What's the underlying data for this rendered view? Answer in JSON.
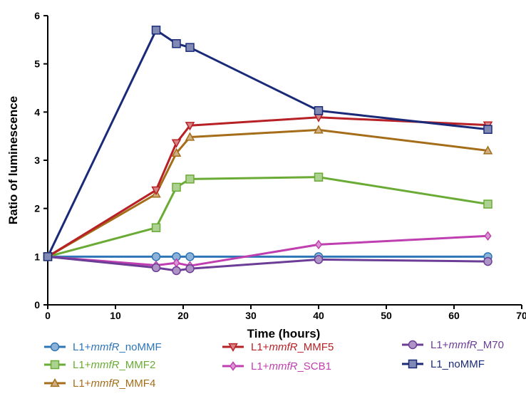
{
  "chart_data": {
    "type": "line",
    "title": "",
    "xlabel": "Time (hours)",
    "ylabel": "Ratio of luminescence",
    "xlim": [
      0,
      70
    ],
    "ylim": [
      0,
      6
    ],
    "xticks": [
      "0",
      "10",
      "20",
      "30",
      "40",
      "50",
      "60",
      "70"
    ],
    "yticks": [
      "0",
      "1",
      "2",
      "3",
      "4",
      "5",
      "6"
    ],
    "grid": false,
    "legend_position": "bottom",
    "series": [
      {
        "name": "L1+mmfR_noMMF",
        "prefix": "L1+",
        "italic": "mmfR",
        "suffix": "_noMMF",
        "color": "#2e75b6",
        "marker": "circle",
        "points": [
          [
            0,
            1.0
          ],
          [
            16,
            1.0
          ],
          [
            19,
            1.0
          ],
          [
            21,
            1.0
          ],
          [
            40,
            1.0
          ],
          [
            65,
            1.0
          ]
        ]
      },
      {
        "name": "L1+mmfR_MMF2",
        "prefix": "L1+",
        "italic": "mmfR",
        "suffix": "_MMF2",
        "color": "#6aab35",
        "marker": "square",
        "points": [
          [
            0,
            1.0
          ],
          [
            16,
            1.6
          ],
          [
            19,
            2.44
          ],
          [
            21,
            2.61
          ],
          [
            40,
            2.65
          ],
          [
            65,
            2.09
          ]
        ]
      },
      {
        "name": "L1+mmfR_MMF4",
        "prefix": "L1+",
        "italic": "mmfR",
        "suffix": "_MMF4",
        "color": "#a56d1a",
        "marker": "triangle-up",
        "points": [
          [
            0,
            1.0
          ],
          [
            16,
            2.3
          ],
          [
            19,
            3.15
          ],
          [
            21,
            3.48
          ],
          [
            40,
            3.63
          ],
          [
            65,
            3.2
          ]
        ]
      },
      {
        "name": "L1+mmfR_MMF5",
        "prefix": "L1+",
        "italic": "mmfR",
        "suffix": "_MMF5",
        "color": "#b72025",
        "marker": "triangle-down",
        "points": [
          [
            0,
            1.0
          ],
          [
            16,
            2.38
          ],
          [
            19,
            3.36
          ],
          [
            21,
            3.72
          ],
          [
            40,
            3.89
          ],
          [
            65,
            3.73
          ]
        ]
      },
      {
        "name": "L1+mmfR_SCB1",
        "prefix": "L1+",
        "italic": "mmfR",
        "suffix": "_SCB1",
        "color": "#bf3fb0",
        "marker": "diamond",
        "points": [
          [
            0,
            1.0
          ],
          [
            16,
            0.82
          ],
          [
            19,
            0.87
          ],
          [
            21,
            0.81
          ],
          [
            40,
            1.25
          ],
          [
            65,
            1.43
          ]
        ]
      },
      {
        "name": "L1+mmfR_M70",
        "prefix": "L1+",
        "italic": "mmfR",
        "suffix": "_M70",
        "color": "#6c3d96",
        "marker": "circle",
        "points": [
          [
            0,
            1.0
          ],
          [
            16,
            0.77
          ],
          [
            19,
            0.71
          ],
          [
            21,
            0.75
          ],
          [
            40,
            0.94
          ],
          [
            65,
            0.9
          ]
        ]
      },
      {
        "name": "L1_noMMF",
        "prefix": "L1_noMMF",
        "italic": "",
        "suffix": "",
        "color": "#1a2a78",
        "marker": "square",
        "points": [
          [
            0,
            1.0
          ],
          [
            16,
            5.7
          ],
          [
            19,
            5.42
          ],
          [
            21,
            5.34
          ],
          [
            40,
            4.03
          ],
          [
            65,
            3.64
          ]
        ]
      }
    ]
  }
}
